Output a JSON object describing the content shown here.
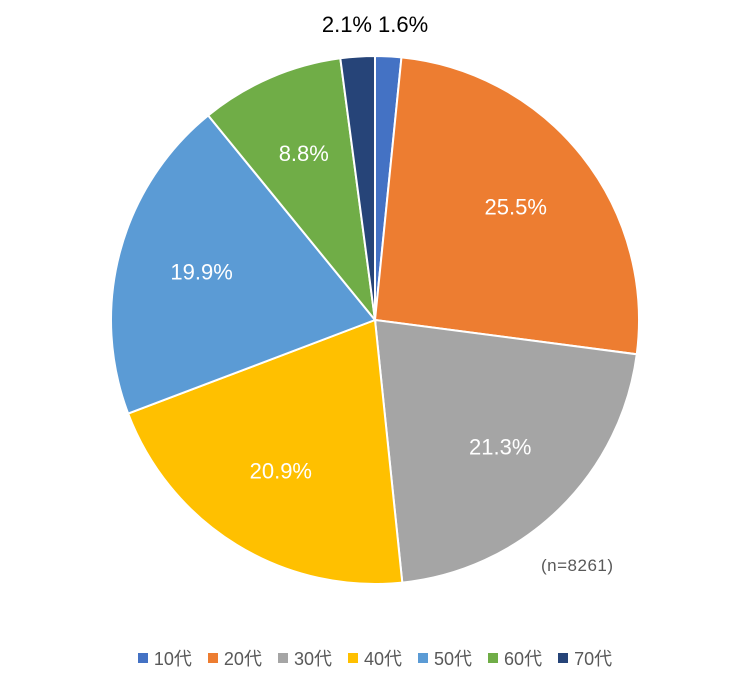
{
  "chart_data": {
    "type": "pie",
    "title": "",
    "categories": [
      "10代",
      "20代",
      "30代",
      "40代",
      "50代",
      "60代",
      "70代"
    ],
    "values": [
      1.6,
      25.5,
      21.3,
      20.9,
      19.9,
      8.8,
      2.1
    ],
    "labels": [
      "1.6%",
      "25.5%",
      "21.3%",
      "20.9%",
      "19.9%",
      "8.8%",
      "2.1%"
    ],
    "colors": [
      "#4472C4",
      "#ED7D31",
      "#A5A5A5",
      "#FFC000",
      "#5B9BD5",
      "#70AD47",
      "#264478"
    ],
    "start_angle": "12 o'clock",
    "direction": "clockwise",
    "legend_position": "bottom",
    "annotation": "(n=8261)"
  }
}
